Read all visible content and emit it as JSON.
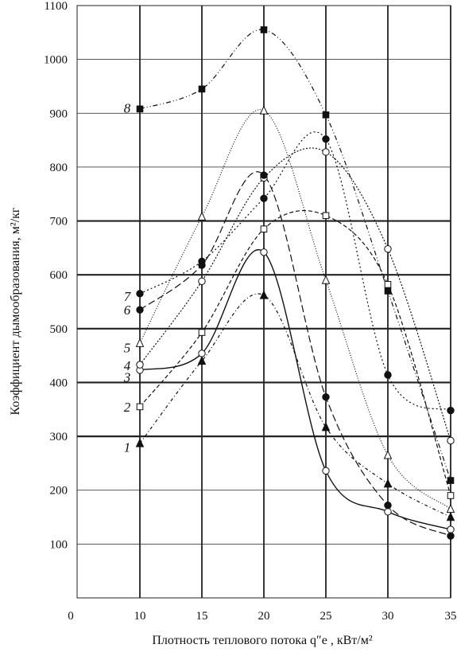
{
  "chart_data": {
    "type": "line",
    "ylabel": "Коэффициент дымообразования, м²/кг",
    "xlabel": "Плотность теплового потока q″e , кВт/м²",
    "xlim": [
      0,
      35
    ],
    "ylim": [
      0,
      1100
    ],
    "x_ticks": [
      "0",
      "10",
      "15",
      "20",
      "25",
      "30",
      "35"
    ],
    "y_ticks": [
      "100",
      "200",
      "300",
      "400",
      "500",
      "600",
      "700",
      "800",
      "900",
      "1000",
      "1100"
    ],
    "x": [
      10,
      15,
      20,
      25,
      30,
      35
    ],
    "series": [
      {
        "name": "1",
        "marker": "triangle-filled",
        "dash": "4 3 1 3",
        "values": [
          287,
          440,
          562,
          317,
          212,
          150
        ]
      },
      {
        "name": "2",
        "marker": "square-open",
        "dash": "5 3",
        "values": [
          355,
          493,
          685,
          710,
          582,
          190
        ]
      },
      {
        "name": "3",
        "marker": "circle-open",
        "dash": "",
        "values": [
          423,
          454,
          642,
          236,
          160,
          127
        ]
      },
      {
        "name": "4",
        "marker": "circle-open",
        "dash": "2 2",
        "values": [
          433,
          588,
          780,
          828,
          648,
          292
        ]
      },
      {
        "name": "5",
        "marker": "triangle-open",
        "dash": "1 2",
        "values": [
          473,
          708,
          905,
          590,
          265,
          165
        ]
      },
      {
        "name": "6",
        "marker": "circle-filled",
        "dash": "9 4",
        "values": [
          535,
          618,
          785,
          373,
          172,
          115
        ]
      },
      {
        "name": "7",
        "marker": "circle-filled",
        "dash": "2 3",
        "values": [
          565,
          625,
          742,
          852,
          414,
          348
        ]
      },
      {
        "name": "8",
        "marker": "square-filled",
        "dash": "6 3 1 3 1 3",
        "values": [
          908,
          945,
          1055,
          897,
          570,
          218
        ]
      }
    ],
    "label_positions_y": [
      280,
      355,
      410,
      432,
      465,
      535,
      560,
      910
    ],
    "grid": true,
    "heavy_gridlines_y": [
      300,
      400,
      500,
      600,
      700
    ]
  }
}
